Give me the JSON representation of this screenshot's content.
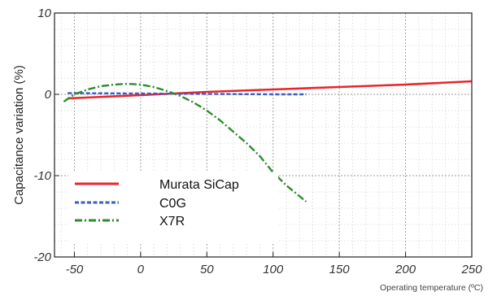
{
  "chart_data": {
    "type": "line",
    "title": "",
    "xlabel": "Operating temperature (ºC)",
    "ylabel": "Capacitance variation (%)",
    "xlim": [
      -65,
      250
    ],
    "ylim": [
      -20,
      10
    ],
    "xticks": [
      -50,
      0,
      50,
      100,
      150,
      200,
      250
    ],
    "yticks": [
      10,
      0,
      -10,
      -20
    ],
    "x_tick_labels": [
      "-50",
      "0",
      "50",
      "100",
      "150",
      "200",
      "250"
    ],
    "y_tick_labels": [
      "10",
      "0",
      "-10",
      "-20"
    ],
    "grid": true,
    "legend_position": "bottom-left",
    "series": [
      {
        "name": "Murata SiCap",
        "color": "#e8262b",
        "style": "solid",
        "points": [
          [
            -55,
            -0.5
          ],
          [
            0,
            -0.1
          ],
          [
            50,
            0.3
          ],
          [
            100,
            0.6
          ],
          [
            150,
            0.9
          ],
          [
            200,
            1.2
          ],
          [
            250,
            1.6
          ]
        ]
      },
      {
        "name": "C0G",
        "color": "#3b5bc9",
        "style": "dashed",
        "points": [
          [
            -55,
            0.15
          ],
          [
            0,
            0.1
          ],
          [
            50,
            0.05
          ],
          [
            100,
            0.0
          ],
          [
            125,
            0.0
          ]
        ]
      },
      {
        "name": "X7R",
        "color": "#2e8b2e",
        "style": "dashdot",
        "points": [
          [
            -58,
            -0.9
          ],
          [
            -50,
            0.0
          ],
          [
            -40,
            0.6
          ],
          [
            -30,
            1.0
          ],
          [
            -20,
            1.2
          ],
          [
            -10,
            1.3
          ],
          [
            0,
            1.2
          ],
          [
            10,
            0.9
          ],
          [
            20,
            0.4
          ],
          [
            30,
            -0.2
          ],
          [
            40,
            -1.0
          ],
          [
            50,
            -2.0
          ],
          [
            60,
            -3.2
          ],
          [
            70,
            -4.6
          ],
          [
            80,
            -6.0
          ],
          [
            90,
            -7.6
          ],
          [
            100,
            -9.6
          ],
          [
            110,
            -11.2
          ],
          [
            125,
            -13.2
          ]
        ]
      }
    ]
  }
}
